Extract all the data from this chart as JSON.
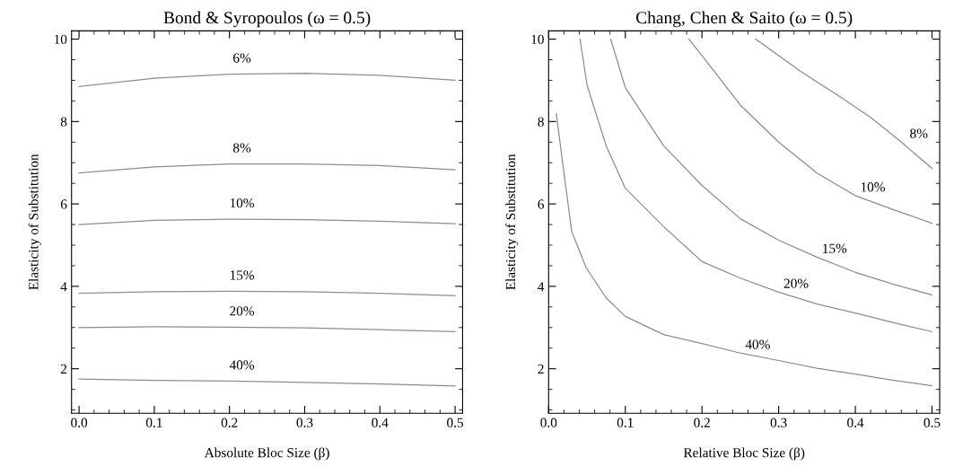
{
  "chart_data": [
    {
      "type": "line",
      "title": "Bond & Syropoulos (ω = 0.5)",
      "xlabel": "Absolute Bloc Size (β)",
      "ylabel": "Elasticity of Substitution",
      "xlim": [
        -0.01,
        0.51
      ],
      "ylim": [
        0.92,
        10.2
      ],
      "xticks": [
        {
          "value": 0,
          "label": "0.0"
        },
        0.1,
        0.2,
        0.3,
        0.4,
        0.5
      ],
      "yticks": [
        2,
        4,
        6,
        8,
        10
      ],
      "grid": false,
      "legend": false,
      "marker": "none",
      "line_style": "solid",
      "series": [
        {
          "name": "6%",
          "color": "#8c8c8c",
          "x": [
            0,
            0.1,
            0.2,
            0.3,
            0.4,
            0.5
          ],
          "values": [
            8.85,
            9.05,
            9.15,
            9.17,
            9.12,
            9.0
          ]
        },
        {
          "name": "8%",
          "color": "#8c8c8c",
          "x": [
            0,
            0.1,
            0.2,
            0.3,
            0.4,
            0.5
          ],
          "values": [
            6.75,
            6.9,
            6.97,
            6.97,
            6.93,
            6.83
          ]
        },
        {
          "name": "10%",
          "color": "#8c8c8c",
          "x": [
            0,
            0.1,
            0.2,
            0.3,
            0.4,
            0.5
          ],
          "values": [
            5.5,
            5.6,
            5.63,
            5.62,
            5.58,
            5.52
          ]
        },
        {
          "name": "15%",
          "color": "#8c8c8c",
          "x": [
            0,
            0.1,
            0.2,
            0.3,
            0.4,
            0.5
          ],
          "values": [
            3.83,
            3.87,
            3.88,
            3.87,
            3.83,
            3.77
          ]
        },
        {
          "name": "20%",
          "color": "#8c8c8c",
          "x": [
            0,
            0.1,
            0.2,
            0.3,
            0.4,
            0.5
          ],
          "values": [
            3.0,
            3.02,
            3.01,
            2.99,
            2.95,
            2.9
          ]
        },
        {
          "name": "40%",
          "color": "#8c8c8c",
          "x": [
            0,
            0.1,
            0.2,
            0.3,
            0.4,
            0.5
          ],
          "values": [
            1.75,
            1.72,
            1.7,
            1.67,
            1.63,
            1.58
          ]
        }
      ]
    },
    {
      "type": "line",
      "title": "Chang, Chen & Saito (ω = 0.5)",
      "xlabel": "Relative Bloc Size (β)",
      "ylabel": "Elasticity of Substitution",
      "xlim": [
        0.0,
        0.51
      ],
      "ylim": [
        0.92,
        10.2
      ],
      "xticks": [
        {
          "value": 0,
          "label": "0.0"
        },
        0.1,
        0.2,
        0.3,
        0.4,
        0.5
      ],
      "yticks": [
        2,
        4,
        6,
        8,
        10
      ],
      "grid": false,
      "legend": false,
      "marker": "none",
      "line_style": "solid",
      "series": [
        {
          "name": "8%",
          "color": "#8c8c8c",
          "x": [
            0.27,
            0.33,
            0.38,
            0.42,
            0.46,
            0.5
          ],
          "values": [
            10,
            9.2,
            8.6,
            8.1,
            7.5,
            6.86
          ]
        },
        {
          "name": "10%",
          "color": "#8c8c8c",
          "x": [
            0.183,
            0.2,
            0.25,
            0.3,
            0.35,
            0.4,
            0.45,
            0.5
          ],
          "values": [
            10,
            9.6,
            8.4,
            7.5,
            6.75,
            6.2,
            5.86,
            5.53
          ]
        },
        {
          "name": "15%",
          "color": "#8c8c8c",
          "x": [
            0.081,
            0.1,
            0.15,
            0.2,
            0.25,
            0.3,
            0.35,
            0.4,
            0.45,
            0.5
          ],
          "values": [
            10,
            8.82,
            7.41,
            6.45,
            5.64,
            5.12,
            4.71,
            4.34,
            4.05,
            3.79
          ]
        },
        {
          "name": "20%",
          "color": "#8c8c8c",
          "x": [
            0.041,
            0.05,
            0.075,
            0.1,
            0.15,
            0.2,
            0.25,
            0.3,
            0.35,
            0.4,
            0.45,
            0.5
          ],
          "values": [
            10,
            8.89,
            7.41,
            6.38,
            5.45,
            4.6,
            4.2,
            3.86,
            3.57,
            3.35,
            3.12,
            2.9
          ]
        },
        {
          "name": "40%",
          "color": "#8c8c8c",
          "x": [
            0.01,
            0.02,
            0.03,
            0.049,
            0.075,
            0.1,
            0.15,
            0.2,
            0.25,
            0.3,
            0.35,
            0.4,
            0.45,
            0.5
          ],
          "values": [
            8.19,
            6.75,
            5.34,
            4.45,
            3.72,
            3.27,
            2.83,
            2.61,
            2.38,
            2.2,
            2.01,
            1.87,
            1.72,
            1.59
          ]
        }
      ]
    }
  ]
}
